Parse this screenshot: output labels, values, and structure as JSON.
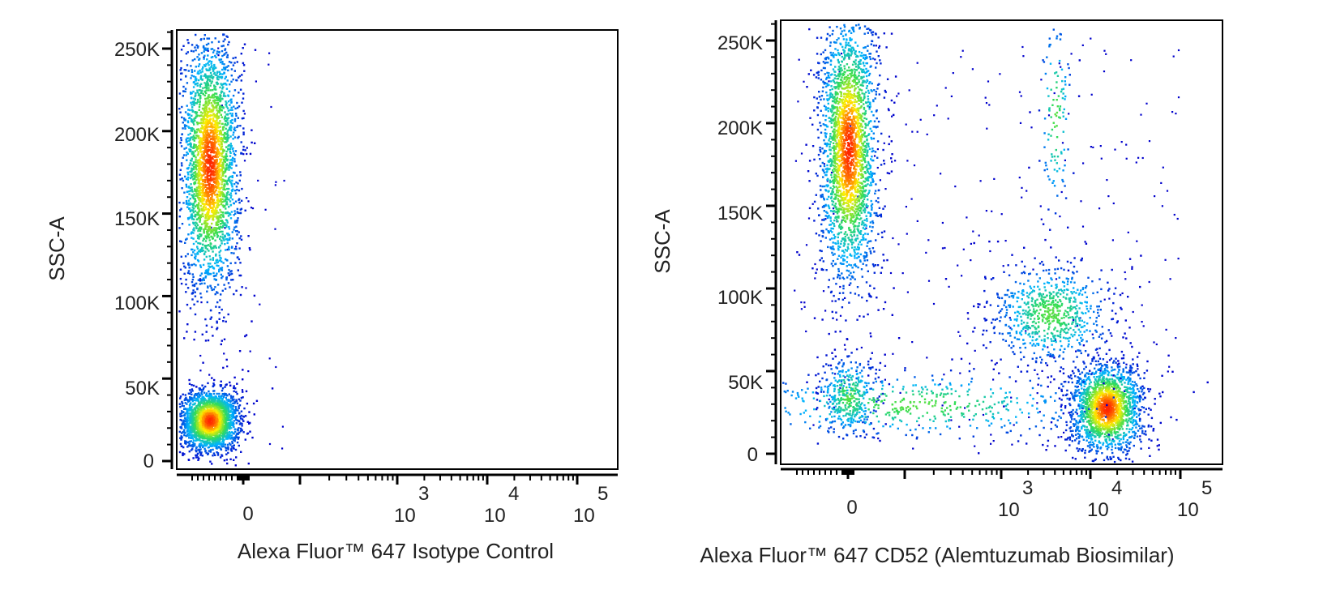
{
  "chart_data": [
    {
      "type": "scatter",
      "subtype": "flow-cytometry-density-dot-plot",
      "title": "",
      "xlabel": "Alexa Fluor™ 647 Isotype Control",
      "ylabel": "SSC-A",
      "xscale": "biexponential",
      "ylim": [
        0,
        262144
      ],
      "y_ticks": [
        {
          "value": 0,
          "label": "0"
        },
        {
          "value": 50000,
          "label": "50K"
        },
        {
          "value": 100000,
          "label": "100K"
        },
        {
          "value": 150000,
          "label": "150K"
        },
        {
          "value": 200000,
          "label": "200K"
        },
        {
          "value": 250000,
          "label": "250K"
        }
      ],
      "x_ticks": [
        {
          "value": 0,
          "label": "0"
        },
        {
          "value": 1000,
          "label": "10",
          "exponent": "3"
        },
        {
          "value": 10000,
          "label": "10",
          "exponent": "4"
        },
        {
          "value": 100000,
          "label": "10",
          "exponent": "5"
        }
      ],
      "color_scale": [
        "#0000cc",
        "#00b4ff",
        "#33dd55",
        "#ffee00",
        "#ff2200"
      ],
      "populations": [
        {
          "name": "negative low-SSC",
          "x_center": -150,
          "y_center": 25000,
          "y_sd": 9000,
          "weight": 0.45
        },
        {
          "name": "negative high-SSC",
          "x_center": -150,
          "y_center": 180000,
          "y_sd": 38000,
          "weight": 0.55
        }
      ]
    },
    {
      "type": "scatter",
      "subtype": "flow-cytometry-density-dot-plot",
      "title": "",
      "xlabel": "Alexa Fluor™ 647 CD52 (Alemtuzumab Biosimilar)",
      "ylabel": "SSC-A",
      "xscale": "biexponential",
      "ylim": [
        0,
        262144
      ],
      "y_ticks": [
        {
          "value": 0,
          "label": "0"
        },
        {
          "value": 50000,
          "label": "50K"
        },
        {
          "value": 100000,
          "label": "100K"
        },
        {
          "value": 150000,
          "label": "150K"
        },
        {
          "value": 200000,
          "label": "200K"
        },
        {
          "value": 250000,
          "label": "250K"
        }
      ],
      "x_ticks": [
        {
          "value": 0,
          "label": "0"
        },
        {
          "value": 1000,
          "label": "10",
          "exponent": "3"
        },
        {
          "value": 10000,
          "label": "10",
          "exponent": "4"
        },
        {
          "value": 100000,
          "label": "10",
          "exponent": "5"
        }
      ],
      "color_scale": [
        "#0000cc",
        "#00b4ff",
        "#33dd55",
        "#ffee00",
        "#ff2200"
      ],
      "populations": [
        {
          "name": "CD52-negative high-SSC",
          "x_center": 0,
          "y_center": 185000,
          "y_sd": 40000,
          "weight": 0.42
        },
        {
          "name": "CD52-bright low-SSC",
          "x_center": 15000,
          "y_center": 28000,
          "y_sd": 13000,
          "weight": 0.3
        },
        {
          "name": "CD52-positive mid-SSC",
          "x_center": 3500,
          "y_center": 85000,
          "y_sd": 15000,
          "weight": 0.12
        },
        {
          "name": "low-SSC negative",
          "x_center": 0,
          "y_center": 35000,
          "y_sd": 12000,
          "weight": 0.06
        },
        {
          "name": "high-SSC positive streak",
          "x_center": 4000,
          "y_center": 205000,
          "y_sd": 30000,
          "weight": 0.02
        },
        {
          "name": "low-SSC intermediate smear",
          "x_center": 300,
          "y_center": 30000,
          "y_sd": 10000,
          "weight": 0.08
        }
      ]
    }
  ]
}
